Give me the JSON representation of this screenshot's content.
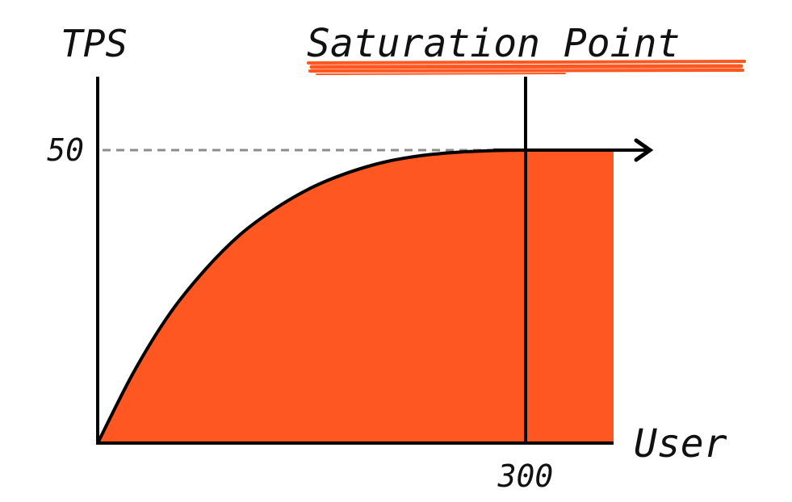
{
  "chart_data": {
    "type": "area",
    "xlabel": "User",
    "ylabel": "TPS",
    "annotation": "Saturation Point",
    "x_ticks": [
      "300"
    ],
    "y_ticks": [
      "50"
    ],
    "saturation": {
      "x": 300,
      "y": 50
    },
    "xlim": [
      0,
      360
    ],
    "ylim": [
      0,
      60
    ],
    "series": [
      {
        "x": [
          0,
          25,
          50,
          75,
          100,
          125,
          150,
          175,
          200,
          225,
          250,
          275,
          300,
          340
        ],
        "values": [
          0,
          12,
          21.9,
          29.5,
          35.6,
          40.1,
          43.6,
          46.1,
          47.9,
          49.0,
          49.6,
          49.9,
          50,
          50
        ]
      }
    ],
    "grid": false,
    "legend": "none",
    "colors": {
      "fill": "#ff5722",
      "stroke": "#000000",
      "dashed_guide": "#8c8c8c",
      "underline": "#ff5722"
    }
  }
}
